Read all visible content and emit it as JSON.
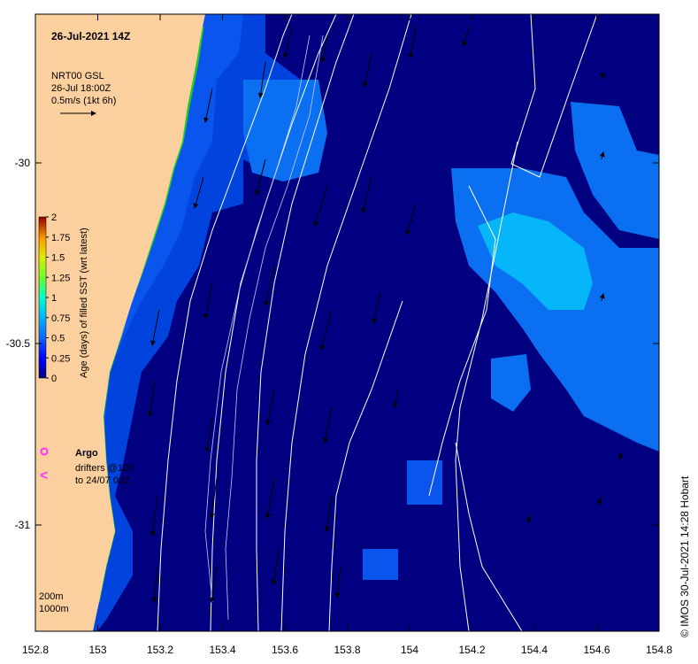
{
  "map": {
    "title": "26-Jul-2021 14Z",
    "velocity_key": {
      "line1": "NRT00 GSL",
      "line2": "26-Jul 18:00Z",
      "line3": "0.5m/s (1kt 6h)"
    },
    "colorbar": {
      "label": "Age (days) of filled SST (wrt latest)",
      "ticks": [
        "2",
        "1.75",
        "1.5",
        "1.25",
        "1",
        "0.75",
        "0.5",
        "0.25",
        "0"
      ],
      "colors": [
        "#00007f",
        "#0000ff",
        "#0a66ff",
        "#00b4ff",
        "#00ffcc",
        "#66ff33",
        "#ddee00",
        "#ff9900",
        "#cc2200",
        "#8b0000"
      ]
    },
    "argo_label": "Argo",
    "drifters_label1": "drifters @12h",
    "drifters_label2": "to 24/07 00Z",
    "contour_labels": [
      "200m",
      "1000m"
    ],
    "x_ticks": [
      "152.8",
      "153",
      "153.2",
      "153.4",
      "153.6",
      "153.8",
      "154",
      "154.2",
      "154.4",
      "154.6",
      "154.8"
    ],
    "y_ticks": [
      "-30",
      "-30.5",
      "-31"
    ],
    "credit": "© IMOS 30-Jul-2021 14:28 Hobart",
    "colors": {
      "land": "#fbcf9e",
      "deep_navy": "#000080",
      "age_0": "#00007f",
      "age_low": "#0044dd",
      "age_mid": "#0a6ff0",
      "age_high": "#06b6f8",
      "contour": "#ffffff",
      "argo": "#ff33ff"
    }
  }
}
